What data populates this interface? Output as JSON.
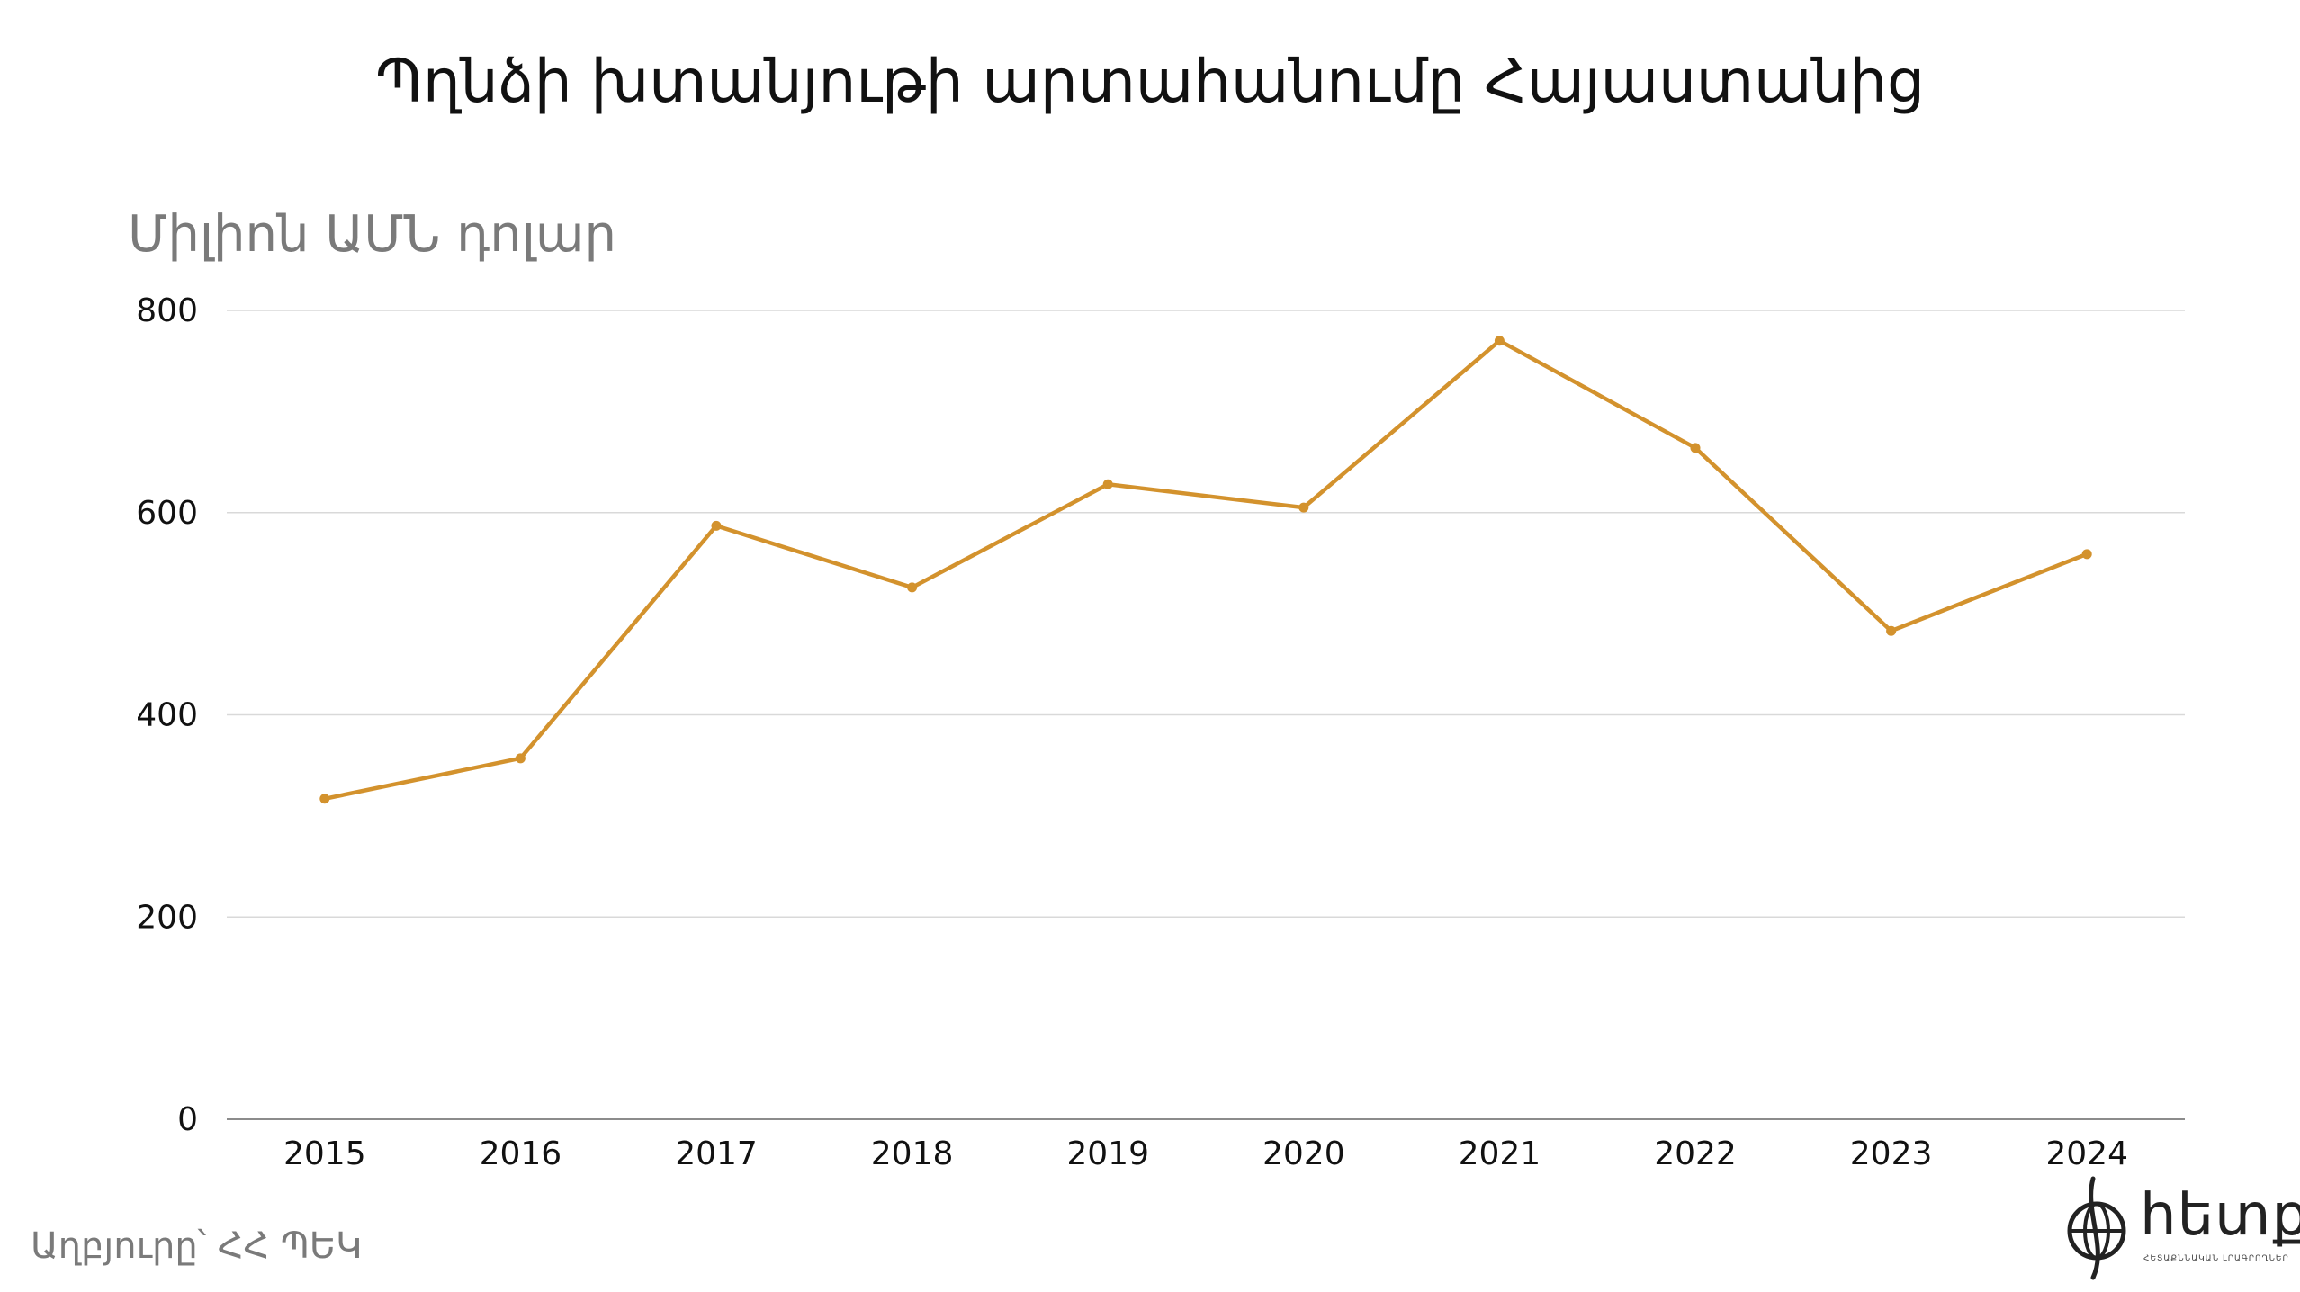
{
  "chart_data": {
    "type": "line",
    "title": "Պղնձի խտանյութի արտահանումը Հայաստանից",
    "ylabel": "Միլիոն ԱՄՆ դոլար",
    "xlabel": "",
    "x": [
      "2015",
      "2016",
      "2017",
      "2018",
      "2019",
      "2020",
      "2021",
      "2022",
      "2023",
      "2024"
    ],
    "series": [
      {
        "values": [
          317,
          357,
          587,
          526,
          628,
          605,
          770,
          664,
          483,
          559
        ],
        "color": "#d3922d"
      }
    ],
    "ylim": [
      0,
      800
    ],
    "yticks": [
      "0",
      "200",
      "400",
      "600",
      "800"
    ],
    "grid": true,
    "gridColor": "#d9d9d9",
    "legend": "none"
  },
  "source": "Աղբյուրը՝ ՀՀ ՊԵԿ",
  "logo": {
    "icon": "globe-logo-icon",
    "text": "հետք",
    "subtext": "ՀԵՏԱՔՆՆԱԿԱՆ ԼՐԱԳՐՈՂՆԵՐ"
  }
}
